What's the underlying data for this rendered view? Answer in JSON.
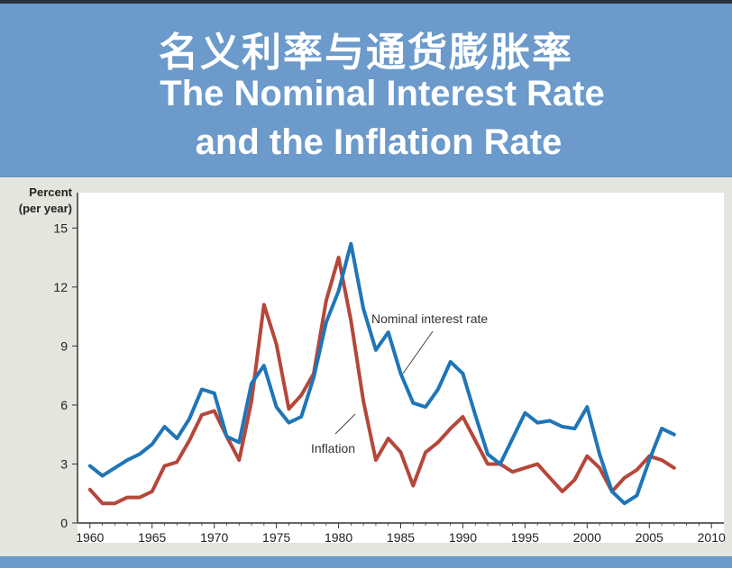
{
  "title": {
    "chinese": "名义利率与通货膨胀率",
    "english_line1": "The Nominal Interest Rate",
    "english_line2": "and the Inflation Rate"
  },
  "colors": {
    "header_bg": "#6b9acb",
    "plot_bg": "#ffffff",
    "chart_bg": "#e4e5dc",
    "nominal": "#1f75b8",
    "inflation": "#b5473a"
  },
  "chart_data": {
    "type": "line",
    "ylabel_line1": "Percent",
    "ylabel_line2": "(per year)",
    "xlim": [
      1959,
      2011
    ],
    "ylim": [
      0,
      16.8
    ],
    "x_ticks": [
      1960,
      1965,
      1970,
      1975,
      1980,
      1985,
      1990,
      1995,
      2000,
      2005,
      2010
    ],
    "y_ticks": [
      0,
      3,
      6,
      9,
      12,
      15
    ],
    "grid": false,
    "series": [
      {
        "name": "Nominal interest rate",
        "x": [
          1960,
          1961,
          1962,
          1963,
          1964,
          1965,
          1966,
          1967,
          1968,
          1969,
          1970,
          1971,
          1972,
          1973,
          1974,
          1975,
          1976,
          1977,
          1978,
          1979,
          1980,
          1981,
          1982,
          1983,
          1984,
          1985,
          1986,
          1987,
          1988,
          1989,
          1990,
          1991,
          1992,
          1993,
          1994,
          1995,
          1996,
          1997,
          1998,
          1999,
          2000,
          2001,
          2002,
          2003,
          2004,
          2005,
          2006,
          2007
        ],
        "y": [
          2.9,
          2.4,
          2.8,
          3.2,
          3.5,
          4.0,
          4.9,
          4.3,
          5.3,
          6.8,
          6.6,
          4.4,
          4.1,
          7.1,
          8.0,
          5.9,
          5.1,
          5.4,
          7.4,
          10.2,
          11.8,
          14.2,
          10.9,
          8.8,
          9.7,
          7.6,
          6.1,
          5.9,
          6.8,
          8.2,
          7.6,
          5.5,
          3.5,
          3.0,
          4.3,
          5.6,
          5.1,
          5.2,
          4.9,
          4.8,
          5.9,
          3.5,
          1.6,
          1.0,
          1.4,
          3.2,
          4.8,
          4.5
        ]
      },
      {
        "name": "Inflation",
        "x": [
          1960,
          1961,
          1962,
          1963,
          1964,
          1965,
          1966,
          1967,
          1968,
          1969,
          1970,
          1971,
          1972,
          1973,
          1974,
          1975,
          1976,
          1977,
          1978,
          1979,
          1980,
          1981,
          1982,
          1983,
          1984,
          1985,
          1986,
          1987,
          1988,
          1989,
          1990,
          1991,
          1992,
          1993,
          1994,
          1995,
          1996,
          1997,
          1998,
          1999,
          2000,
          2001,
          2002,
          2003,
          2004,
          2005,
          2006,
          2007
        ],
        "y": [
          1.7,
          1.0,
          1.0,
          1.3,
          1.3,
          1.6,
          2.9,
          3.1,
          4.2,
          5.5,
          5.7,
          4.4,
          3.2,
          6.2,
          11.1,
          9.1,
          5.8,
          6.5,
          7.6,
          11.3,
          13.5,
          10.3,
          6.2,
          3.2,
          4.3,
          3.6,
          1.9,
          3.6,
          4.1,
          4.8,
          5.4,
          4.2,
          3.0,
          3.0,
          2.6,
          2.8,
          3.0,
          2.3,
          1.6,
          2.2,
          3.4,
          2.8,
          1.6,
          2.3,
          2.7,
          3.4,
          3.2,
          2.8
        ]
      }
    ],
    "annotations": [
      {
        "text": "Nominal interest rate",
        "series": 0
      },
      {
        "text": "Inflation",
        "series": 1
      }
    ]
  }
}
